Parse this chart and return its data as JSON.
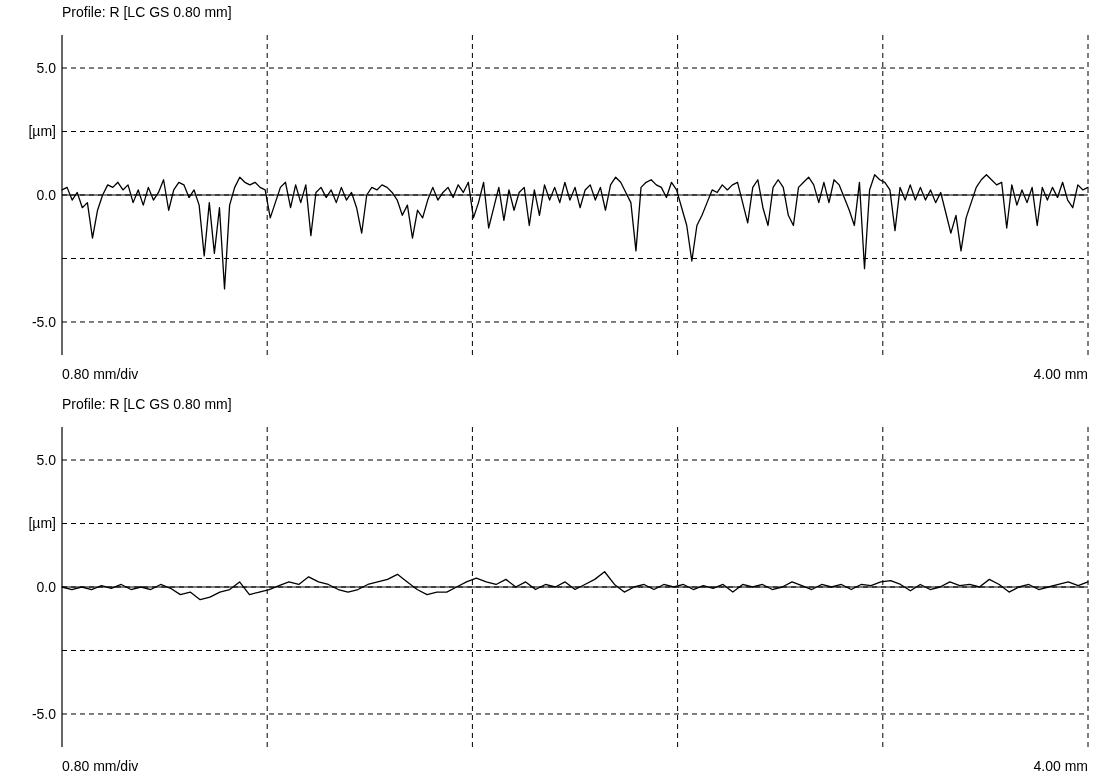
{
  "chart_data": [
    {
      "type": "line",
      "title": "Profile: R [LC GS 0.80 mm]",
      "ylabel": "[µm]",
      "ylim": [
        -6.3,
        6.3
      ],
      "categories": [
        null,
        null,
        null,
        null,
        null,
        null,
        null,
        null,
        null,
        null,
        null,
        null,
        null,
        null,
        null,
        null,
        null,
        null,
        null,
        null,
        null,
        null,
        null,
        null,
        null,
        null,
        null,
        null,
        null,
        null,
        null,
        null,
        null,
        null,
        null,
        null,
        null,
        null,
        null,
        null,
        null,
        null,
        null,
        null,
        null,
        null,
        null,
        null,
        null,
        null,
        null,
        null,
        null,
        null,
        null,
        null,
        null,
        null,
        null,
        null,
        null,
        null,
        null,
        null,
        null,
        null,
        null,
        null,
        null,
        null,
        null,
        null,
        null,
        null,
        null,
        null,
        null,
        null,
        null,
        null,
        null,
        null,
        null,
        null,
        null,
        null,
        null,
        null,
        null,
        null,
        null,
        null,
        null,
        null,
        null,
        null,
        null,
        null,
        null,
        null,
        null,
        null,
        null,
        null,
        null,
        null,
        null,
        null,
        null,
        null,
        null,
        null,
        null,
        null,
        null,
        null,
        null,
        null,
        null,
        null,
        null,
        null,
        null,
        null,
        null,
        null,
        null,
        null,
        null,
        null,
        null,
        null,
        null,
        null,
        null,
        null,
        null,
        null,
        null,
        null,
        null,
        null,
        null,
        null,
        null,
        null,
        null,
        null,
        null,
        null,
        null,
        null,
        null,
        null,
        null,
        null,
        null,
        null,
        null,
        null,
        null,
        null,
        null,
        null,
        null,
        null,
        null,
        null,
        null,
        null,
        null,
        null,
        null,
        null,
        null,
        null,
        null,
        null,
        null,
        null,
        null,
        null,
        null,
        null,
        null,
        null,
        null,
        null,
        null,
        null,
        null,
        null,
        null,
        null,
        null,
        null,
        null,
        null,
        null,
        null,
        null,
        null,
        null
      ],
      "yticks": [
        {
          "value": 5,
          "label": "5.0"
        },
        {
          "value": 2.5,
          "label": null
        },
        {
          "value": 0,
          "label": "0.0"
        },
        {
          "value": -2.5,
          "label": null
        },
        {
          "value": -5,
          "label": "-5.0"
        }
      ],
      "grid": true,
      "ref_lines": [
        {
          "axis": "y",
          "value": 0,
          "color": "#000000"
        }
      ],
      "annotations": [
        "0.80 mm/div",
        "4.00 mm"
      ],
      "series": [
        {
          "color": "#000000",
          "values": [
            0.2,
            0.3,
            -0.2,
            0.1,
            -0.5,
            -0.3,
            -1.7,
            -0.6,
            0.0,
            0.4,
            0.3,
            0.5,
            0.2,
            0.4,
            -0.3,
            0.2,
            -0.4,
            0.3,
            -0.2,
            0.1,
            0.6,
            -0.6,
            0.2,
            0.5,
            0.4,
            -0.1,
            0.2,
            -0.4,
            -2.4,
            -0.3,
            -2.3,
            -0.5,
            -3.7,
            -0.4,
            0.3,
            0.7,
            0.5,
            0.4,
            0.5,
            0.3,
            0.2,
            -0.9,
            -0.3,
            0.3,
            0.5,
            -0.5,
            0.4,
            -0.3,
            0.4,
            -1.6,
            0.1,
            0.3,
            -0.1,
            0.2,
            -0.3,
            0.3,
            -0.2,
            0.1,
            -0.5,
            -1.5,
            0.0,
            0.3,
            0.2,
            0.4,
            0.3,
            0.1,
            -0.2,
            -0.8,
            -0.4,
            -1.7,
            -0.6,
            -0.9,
            -0.2,
            0.3,
            -0.2,
            0.1,
            0.3,
            -0.1,
            0.4,
            0.1,
            0.5,
            -0.9,
            -0.3,
            0.5,
            -1.3,
            -0.5,
            0.3,
            -1.0,
            0.2,
            -0.6,
            0.1,
            0.3,
            -1.2,
            0.2,
            -0.8,
            0.4,
            -0.2,
            0.3,
            -0.3,
            0.5,
            -0.2,
            0.3,
            -0.5,
            0.2,
            0.4,
            -0.2,
            0.3,
            -0.6,
            0.4,
            0.7,
            0.5,
            0.1,
            -0.3,
            -2.2,
            0.3,
            0.5,
            0.6,
            0.4,
            0.3,
            -0.1,
            0.5,
            0.2,
            -0.5,
            -1.2,
            -2.6,
            -1.2,
            -0.8,
            -0.3,
            0.2,
            0.1,
            0.4,
            0.2,
            0.4,
            0.5,
            -0.3,
            -1.1,
            0.3,
            0.6,
            -0.5,
            -1.2,
            0.3,
            0.6,
            0.3,
            -0.8,
            -1.2,
            0.3,
            0.5,
            0.7,
            0.4,
            -0.3,
            0.5,
            -0.3,
            0.6,
            0.4,
            -0.1,
            -0.6,
            -1.2,
            0.5,
            -2.9,
            0.2,
            0.8,
            0.6,
            0.5,
            0.2,
            -1.4,
            0.3,
            -0.2,
            0.4,
            -0.2,
            0.3,
            -0.2,
            0.2,
            -0.3,
            0.1,
            -0.7,
            -1.5,
            -0.8,
            -2.2,
            -0.9,
            -0.3,
            0.3,
            0.6,
            0.8,
            0.6,
            0.4,
            0.5,
            -1.3,
            0.4,
            -0.4,
            0.2,
            -0.3,
            0.3,
            -1.2,
            0.3,
            -0.2,
            0.3,
            -0.1,
            0.5,
            -0.2,
            -0.5,
            0.4,
            0.2,
            0.3
          ]
        }
      ]
    },
    {
      "type": "line",
      "title": "Profile: R [LC GS 0.80 mm]",
      "ylabel": "[µm]",
      "ylim": [
        -6.3,
        6.3
      ],
      "categories": [
        null,
        null,
        null,
        null,
        null,
        null,
        null,
        null,
        null,
        null,
        null,
        null,
        null,
        null,
        null,
        null,
        null,
        null,
        null,
        null,
        null,
        null,
        null,
        null,
        null,
        null,
        null,
        null,
        null,
        null,
        null,
        null,
        null,
        null,
        null,
        null,
        null,
        null,
        null,
        null,
        null,
        null,
        null,
        null,
        null,
        null,
        null,
        null,
        null,
        null,
        null,
        null,
        null,
        null,
        null,
        null,
        null,
        null,
        null,
        null,
        null,
        null,
        null,
        null,
        null,
        null,
        null,
        null,
        null,
        null,
        null,
        null,
        null,
        null,
        null,
        null,
        null,
        null,
        null,
        null,
        null,
        null,
        null,
        null,
        null,
        null,
        null,
        null,
        null,
        null,
        null,
        null,
        null,
        null,
        null,
        null,
        null,
        null,
        null,
        null,
        null,
        null,
        null,
        null,
        null
      ],
      "yticks": [
        {
          "value": 5,
          "label": "5.0"
        },
        {
          "value": 2.5,
          "label": null
        },
        {
          "value": 0,
          "label": "0.0"
        },
        {
          "value": -2.5,
          "label": null
        },
        {
          "value": -5,
          "label": "-5.0"
        }
      ],
      "grid": true,
      "ref_lines": [
        {
          "axis": "y",
          "value": 0,
          "color": "#000000"
        }
      ],
      "annotations": [
        "0.80 mm/div",
        "4.00 mm"
      ],
      "series": [
        {
          "color": "#000000",
          "values": [
            0.0,
            -0.1,
            0.0,
            -0.1,
            0.05,
            -0.05,
            0.1,
            -0.1,
            0.0,
            -0.1,
            0.1,
            -0.05,
            -0.3,
            -0.2,
            -0.5,
            -0.4,
            -0.2,
            -0.1,
            0.2,
            -0.3,
            -0.2,
            -0.1,
            0.05,
            0.2,
            0.1,
            0.4,
            0.2,
            0.1,
            -0.1,
            -0.2,
            -0.1,
            0.1,
            0.2,
            0.3,
            0.5,
            0.2,
            -0.1,
            -0.3,
            -0.2,
            -0.2,
            0.0,
            0.2,
            0.35,
            0.2,
            0.1,
            0.3,
            0.0,
            0.2,
            -0.1,
            0.1,
            0.0,
            0.2,
            -0.1,
            0.1,
            0.3,
            0.6,
            0.1,
            -0.2,
            0.0,
            0.1,
            -0.1,
            0.1,
            0.0,
            0.1,
            -0.1,
            0.05,
            -0.05,
            0.1,
            -0.2,
            0.1,
            0.0,
            0.1,
            -0.1,
            0.0,
            0.2,
            0.05,
            -0.1,
            0.1,
            0.0,
            0.1,
            -0.1,
            0.1,
            0.05,
            0.2,
            0.25,
            0.1,
            -0.15,
            0.1,
            -0.1,
            0.0,
            0.2,
            0.05,
            0.1,
            0.0,
            0.3,
            0.1,
            -0.2,
            0.0,
            0.1,
            -0.1,
            0.0,
            0.1,
            0.2,
            0.05,
            0.2
          ]
        }
      ]
    }
  ]
}
